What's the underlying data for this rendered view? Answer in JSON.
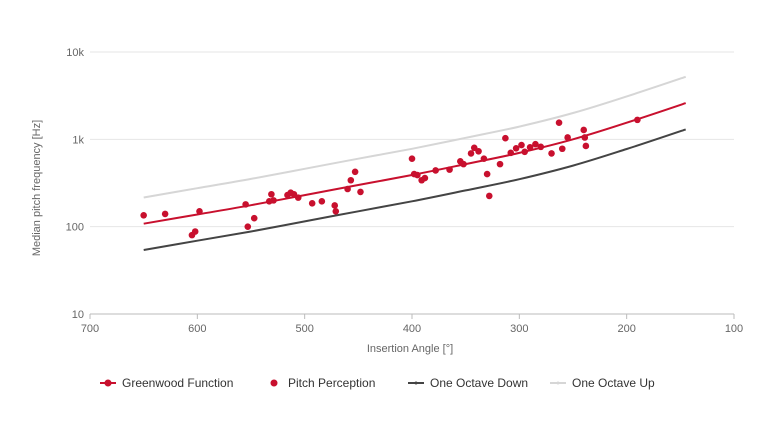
{
  "chart_data": {
    "type": "scatter",
    "title": "",
    "xlabel": "Insertion Angle [°]",
    "ylabel": "Median pitch frequency [Hz]",
    "x_axis": {
      "min": 100,
      "max": 700,
      "reversed": true,
      "ticks": [
        700,
        600,
        500,
        400,
        300,
        200,
        100
      ]
    },
    "y_axis": {
      "scale": "log",
      "min": 10,
      "max": 10000,
      "ticks": [
        10,
        100,
        1000,
        10000
      ],
      "tick_labels": [
        "10",
        "100",
        "1k",
        "10k"
      ]
    },
    "grid": {
      "horizontal": true,
      "vertical": false
    },
    "legend_position": "bottom",
    "series": [
      {
        "name": "Greenwood Function",
        "kind": "line",
        "color": "#c8102e",
        "x": [
          650,
          600,
          550,
          500,
          450,
          400,
          350,
          300,
          250,
          200,
          145
        ],
        "y": [
          108,
          138,
          176,
          230,
          300,
          390,
          520,
          700,
          1000,
          1550,
          2600
        ]
      },
      {
        "name": "Pitch Perception",
        "kind": "scatter",
        "color": "#c8102e",
        "x": [
          650,
          630,
          605,
          602,
          598,
          555,
          553,
          547,
          533,
          531,
          529,
          516,
          513,
          510,
          506,
          493,
          484,
          472,
          471,
          460,
          457,
          453,
          448,
          400,
          398,
          395,
          391,
          388,
          378,
          365,
          355,
          352,
          345,
          342,
          338,
          333,
          330,
          328,
          318,
          313,
          308,
          303,
          298,
          295,
          290,
          285,
          280,
          270,
          263,
          260,
          255,
          240,
          239,
          238,
          190
        ],
        "y": [
          135,
          140,
          80,
          88,
          150,
          180,
          100,
          125,
          195,
          235,
          200,
          230,
          245,
          235,
          215,
          185,
          195,
          175,
          150,
          270,
          340,
          425,
          250,
          600,
          400,
          390,
          340,
          360,
          440,
          450,
          560,
          520,
          690,
          800,
          730,
          600,
          400,
          225,
          520,
          1030,
          700,
          790,
          860,
          720,
          810,
          880,
          820,
          690,
          1550,
          780,
          1050,
          1280,
          1050,
          840,
          1670
        ]
      },
      {
        "name": "One Octave Down",
        "kind": "line",
        "color": "#444444",
        "x": [
          650,
          600,
          550,
          500,
          450,
          400,
          350,
          300,
          250,
          200,
          145
        ],
        "y": [
          54,
          69,
          88,
          115,
          150,
          195,
          260,
          350,
          500,
          775,
          1300
        ]
      },
      {
        "name": "One Octave Up",
        "kind": "line",
        "color": "#d6d6d6",
        "x": [
          650,
          600,
          550,
          500,
          450,
          400,
          350,
          300,
          250,
          200,
          145
        ],
        "y": [
          216,
          276,
          352,
          460,
          600,
          780,
          1040,
          1400,
          2000,
          3100,
          5200
        ]
      }
    ]
  }
}
